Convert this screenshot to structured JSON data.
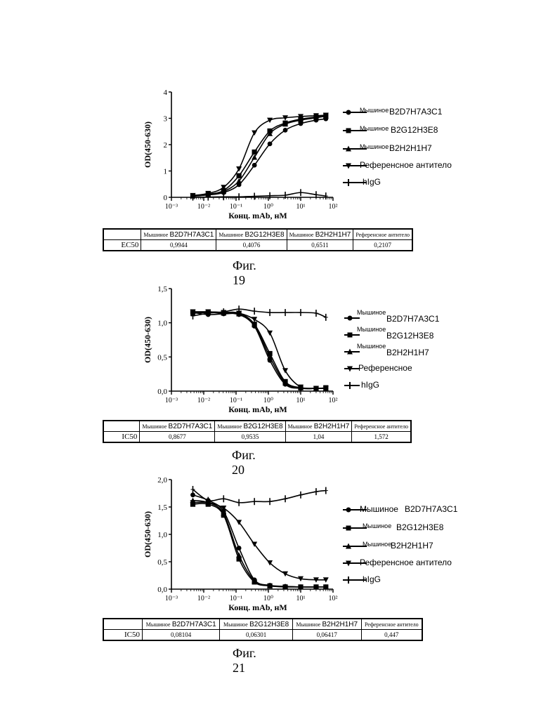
{
  "chart_data": [
    {
      "type": "line",
      "xscale": "log",
      "xlim": [
        0.001,
        100
      ],
      "ylim": [
        0,
        4
      ],
      "yticks": [
        "0",
        "1",
        "2",
        "3",
        "4"
      ],
      "ylabel": "OD(450-630)",
      "xlabel": "Конц. mAb, нМ",
      "x": [
        0.0046,
        0.0137,
        0.0412,
        0.123,
        0.37,
        1.11,
        3.33,
        10,
        30,
        60
      ],
      "series": [
        {
          "name_prefix": "Мышиное",
          "name": "B2D7H7A3C1",
          "marker": "circle",
          "values": [
            0.05,
            0.09,
            0.18,
            0.48,
            1.22,
            2.03,
            2.55,
            2.8,
            2.93,
            2.98
          ]
        },
        {
          "name_prefix": "Мышиное",
          "name": "B2G12H3E8",
          "marker": "square",
          "values": [
            0.06,
            0.12,
            0.26,
            0.82,
            1.72,
            2.52,
            2.82,
            2.97,
            3.05,
            3.1
          ]
        },
        {
          "name_prefix": "Мышиное",
          "name": "B2H2H1H7",
          "marker": "triangle-up",
          "values": [
            0.05,
            0.1,
            0.22,
            0.62,
            1.52,
            2.42,
            2.78,
            2.93,
            3.02,
            3.08
          ]
        },
        {
          "name": "Референсное антитело",
          "marker": "triangle-down",
          "values": [
            0.07,
            0.15,
            0.38,
            1.08,
            2.45,
            2.93,
            3.02,
            3.07,
            3.1,
            3.12
          ]
        },
        {
          "name": "hIgG",
          "marker": "plus",
          "values": [
            0.01,
            0.01,
            0.02,
            0.02,
            0.04,
            0.06,
            0.08,
            0.18,
            0.1,
            0.05
          ]
        }
      ],
      "table": {
        "label": "EC50",
        "headers": [
          "B2D7H7A3C1",
          "B2G12H3E8",
          "B2H2H1H7"
        ],
        "header_prefix": "Мышиное",
        "ref_header": "Референсное антитело",
        "values": [
          "0,9944",
          "0,4076",
          "0,6511",
          "0,2107"
        ]
      },
      "caption": "Фиг. 19"
    },
    {
      "type": "line",
      "xscale": "log",
      "xlim": [
        0.001,
        100
      ],
      "ylim": [
        0,
        1.5
      ],
      "yticks": [
        "0,0",
        "0,5",
        "1,0",
        "1,5"
      ],
      "ylabel": "OD(450-630)",
      "xlabel": "Конц. mAb, нМ",
      "x": [
        0.0046,
        0.0137,
        0.0412,
        0.123,
        0.37,
        1.11,
        3.33,
        10,
        30,
        60
      ],
      "series": [
        {
          "name_prefix": "Мышиное",
          "name": "B2D7H7A3C1",
          "marker": "circle",
          "values": [
            1.15,
            1.12,
            1.13,
            1.12,
            0.95,
            0.45,
            0.1,
            0.04,
            0.04,
            0.04
          ]
        },
        {
          "name_prefix": "Мышиное",
          "name": "B2G12H3E8",
          "marker": "square",
          "values": [
            1.16,
            1.16,
            1.15,
            1.14,
            0.98,
            0.55,
            0.14,
            0.05,
            0.04,
            0.05
          ]
        },
        {
          "name_prefix": "Мышиное",
          "name": "B2H2H1H7",
          "marker": "triangle-up",
          "values": [
            1.14,
            1.15,
            1.14,
            1.13,
            0.97,
            0.5,
            0.12,
            0.05,
            0.04,
            0.04
          ]
        },
        {
          "name": "Референсное",
          "marker": "triangle-down",
          "values": [
            1.16,
            1.16,
            1.15,
            1.14,
            1.05,
            0.85,
            0.3,
            0.06,
            0.04,
            0.04
          ]
        },
        {
          "name": "hIgG",
          "marker": "plus",
          "values": [
            1.1,
            1.14,
            1.16,
            1.2,
            1.17,
            1.15,
            1.15,
            1.15,
            1.14,
            1.08
          ]
        }
      ],
      "table": {
        "label": "IC50",
        "headers": [
          "B2D7H7A3C1",
          "B2G12H3E8",
          "B2H2H1H7"
        ],
        "header_prefix": "Мышиное",
        "ref_header": "Референсное антитело",
        "values": [
          "0,8677",
          "0,9535",
          "1,04",
          "1,572"
        ]
      },
      "caption": "Фиг. 20"
    },
    {
      "type": "line",
      "xscale": "log",
      "xlim": [
        0.001,
        100
      ],
      "ylim": [
        0,
        2
      ],
      "yticks": [
        "0,0",
        "0,5",
        "1,0",
        "1,5",
        "2,0"
      ],
      "ylabel": "OD(450-630)",
      "xlabel": "Конц. mAb, нМ",
      "x": [
        0.0046,
        0.0137,
        0.0412,
        0.123,
        0.37,
        1.11,
        3.33,
        10,
        30,
        60
      ],
      "series": [
        {
          "name_prefix": "Мышиное",
          "name": "B2D7H7A3C1",
          "marker": "circle",
          "values": [
            1.72,
            1.62,
            1.42,
            0.75,
            0.17,
            0.07,
            0.05,
            0.04,
            0.04,
            0.04
          ]
        },
        {
          "name_prefix": "Мышиное",
          "name": "B2G12H3E8",
          "marker": "square",
          "values": [
            1.55,
            1.55,
            1.35,
            0.55,
            0.13,
            0.06,
            0.04,
            0.04,
            0.04,
            0.04
          ]
        },
        {
          "name_prefix": "Мышиное",
          "name": "B2H2H1H7",
          "marker": "triangle-up",
          "values": [
            1.62,
            1.58,
            1.38,
            0.62,
            0.15,
            0.06,
            0.05,
            0.04,
            0.04,
            0.04
          ]
        },
        {
          "name": "Референсное антитело",
          "marker": "triangle-down",
          "values": [
            1.58,
            1.58,
            1.48,
            1.22,
            0.82,
            0.48,
            0.28,
            0.19,
            0.17,
            0.17
          ]
        },
        {
          "name": "hIgG",
          "marker": "plus",
          "values": [
            1.82,
            1.62,
            1.65,
            1.58,
            1.6,
            1.6,
            1.65,
            1.72,
            1.78,
            1.8
          ]
        }
      ],
      "table": {
        "label": "IC50",
        "headers": [
          "B2D7H7A3C1",
          "B2G12H3E8",
          "B2H2H1H7"
        ],
        "header_prefix": "Мышиное",
        "ref_header": "Референсное антитело",
        "values": [
          "0,08104",
          "0,06301",
          "0,06417",
          "0,447"
        ]
      },
      "caption": "Фиг. 21"
    }
  ],
  "x_tick_labels": [
    "10⁻³",
    "10⁻²",
    "10⁻¹",
    "10⁰",
    "10¹",
    "10²"
  ]
}
